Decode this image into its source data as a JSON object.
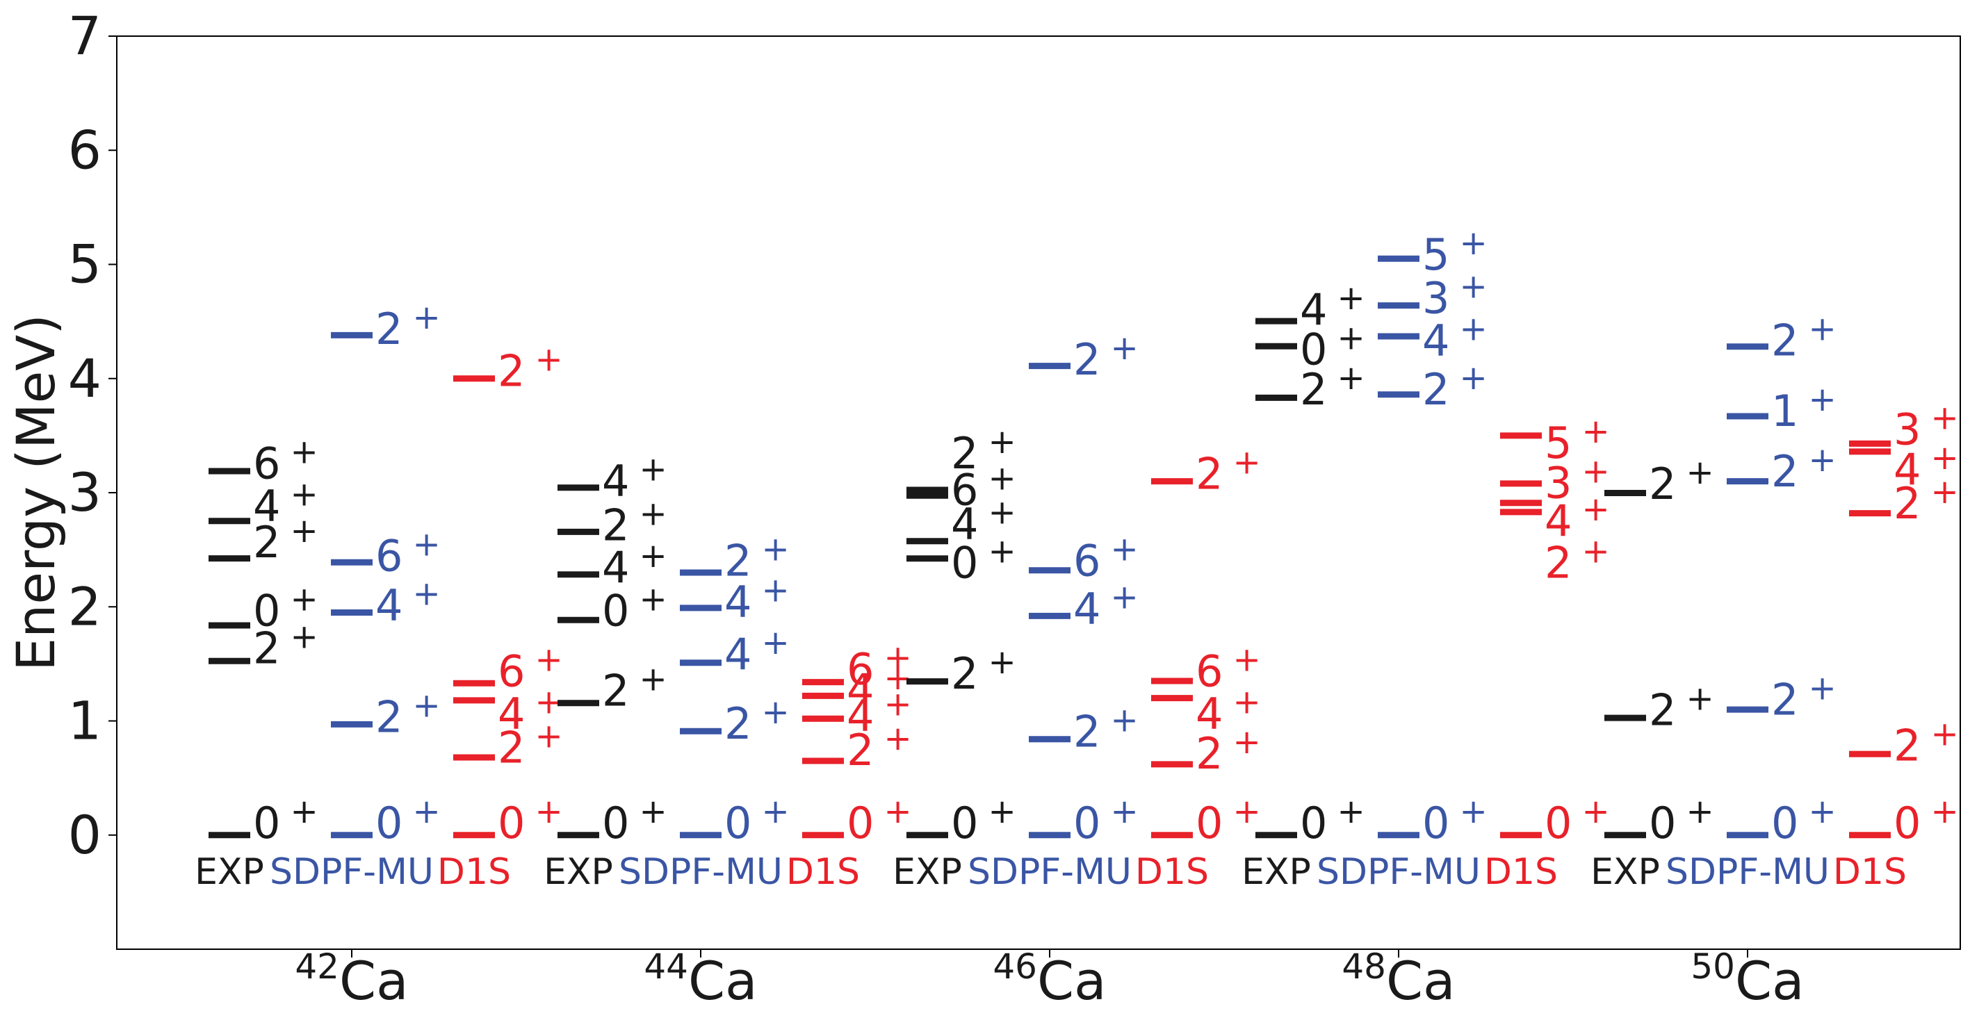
{
  "colors": {
    "EXP": "#1a1a1a",
    "SDPF-MU": "#3a55a4",
    "D1S": "#e8212a",
    "axis": "#000000"
  },
  "chart_data": {
    "type": "level-scheme",
    "ylabel": "Energy (MeV)",
    "ylim": [
      -1.0,
      7.0
    ],
    "yticks": [
      "0",
      "1",
      "2",
      "3",
      "4",
      "5",
      "6",
      "7"
    ],
    "methods": [
      "EXP",
      "SDPF-MU",
      "D1S"
    ],
    "nuclei": [
      {
        "mass": "42",
        "element": "Ca",
        "columns": [
          {
            "method": "EXP",
            "levels": [
              {
                "e": 0.0,
                "label": "0",
                "label_e": 0.12
              },
              {
                "e": 1.525,
                "label": "2",
                "label_e": 1.65
              },
              {
                "e": 1.837,
                "label": "0",
                "label_e": 1.98
              },
              {
                "e": 2.424,
                "label": "2",
                "label_e": 2.58
              },
              {
                "e": 2.752,
                "label": "4",
                "label_e": 2.9
              },
              {
                "e": 3.189,
                "label": "6",
                "label_e": 3.27
              }
            ]
          },
          {
            "method": "SDPF-MU",
            "levels": [
              {
                "e": 0.0,
                "label": "0",
                "label_e": 0.12
              },
              {
                "e": 0.97,
                "label": "2",
                "label_e": 1.05
              },
              {
                "e": 1.95,
                "label": "4",
                "label_e": 2.03
              },
              {
                "e": 2.39,
                "label": "6",
                "label_e": 2.46
              },
              {
                "e": 4.38,
                "label": "2",
                "label_e": 4.45
              }
            ]
          },
          {
            "method": "D1S",
            "levels": [
              {
                "e": 0.0,
                "label": "0",
                "label_e": 0.12
              },
              {
                "e": 0.68,
                "label": "2",
                "label_e": 0.78
              },
              {
                "e": 1.18,
                "label": "4",
                "label_e": 1.08
              },
              {
                "e": 1.33,
                "label": "6",
                "label_e": 1.45
              },
              {
                "e": 4.0,
                "label": "2",
                "label_e": 4.08
              }
            ]
          }
        ]
      },
      {
        "mass": "44",
        "element": "Ca",
        "columns": [
          {
            "method": "EXP",
            "levels": [
              {
                "e": 0.0,
                "label": "0",
                "label_e": 0.12
              },
              {
                "e": 1.157,
                "label": "2",
                "label_e": 1.28
              },
              {
                "e": 1.884,
                "label": "0",
                "label_e": 1.98
              },
              {
                "e": 2.283,
                "label": "4",
                "label_e": 2.36
              },
              {
                "e": 2.657,
                "label": "2",
                "label_e": 2.73
              },
              {
                "e": 3.044,
                "label": "4",
                "label_e": 3.12
              }
            ]
          },
          {
            "method": "SDPF-MU",
            "levels": [
              {
                "e": 0.0,
                "label": "0",
                "label_e": 0.12
              },
              {
                "e": 0.91,
                "label": "2",
                "label_e": 0.99
              },
              {
                "e": 1.51,
                "label": "4",
                "label_e": 1.6
              },
              {
                "e": 1.99,
                "label": "4",
                "label_e": 2.06
              },
              {
                "e": 2.3,
                "label": "2",
                "label_e": 2.42
              }
            ]
          },
          {
            "method": "D1S",
            "levels": [
              {
                "e": 0.0,
                "label": "0",
                "label_e": 0.12
              },
              {
                "e": 0.65,
                "label": "2",
                "label_e": 0.76
              },
              {
                "e": 1.02,
                "label": "4",
                "label_e": 1.06
              },
              {
                "e": 1.22,
                "label": "4",
                "label_e": 1.29
              },
              {
                "e": 1.34,
                "label": "6",
                "label_e": 1.47
              }
            ]
          }
        ]
      },
      {
        "mass": "46",
        "element": "Ca",
        "columns": [
          {
            "method": "EXP",
            "levels": [
              {
                "e": 0.0,
                "label": "0",
                "label_e": 0.12
              },
              {
                "e": 1.346,
                "label": "2",
                "label_e": 1.43
              },
              {
                "e": 2.423,
                "label": "0",
                "label_e": 2.4
              },
              {
                "e": 2.575,
                "label": "4",
                "label_e": 2.74
              },
              {
                "e": 2.974,
                "label": "6",
                "label_e": 3.04
              },
              {
                "e": 3.024,
                "label": "2",
                "label_e": 3.36
              }
            ]
          },
          {
            "method": "SDPF-MU",
            "levels": [
              {
                "e": 0.0,
                "label": "0",
                "label_e": 0.12
              },
              {
                "e": 0.84,
                "label": "2",
                "label_e": 0.92
              },
              {
                "e": 1.92,
                "label": "4",
                "label_e": 2.0
              },
              {
                "e": 2.32,
                "label": "6",
                "label_e": 2.42
              },
              {
                "e": 4.11,
                "label": "2",
                "label_e": 4.18
              }
            ]
          },
          {
            "method": "D1S",
            "levels": [
              {
                "e": 0.0,
                "label": "0",
                "label_e": 0.12
              },
              {
                "e": 0.62,
                "label": "2",
                "label_e": 0.73
              },
              {
                "e": 1.2,
                "label": "4",
                "label_e": 1.08
              },
              {
                "e": 1.35,
                "label": "6",
                "label_e": 1.45
              },
              {
                "e": 3.1,
                "label": "2",
                "label_e": 3.18
              }
            ]
          }
        ]
      },
      {
        "mass": "48",
        "element": "Ca",
        "columns": [
          {
            "method": "EXP",
            "levels": [
              {
                "e": 0.0,
                "label": "0",
                "label_e": 0.12
              },
              {
                "e": 3.832,
                "label": "2",
                "label_e": 3.92
              },
              {
                "e": 4.283,
                "label": "0",
                "label_e": 4.27
              },
              {
                "e": 4.503,
                "label": "4",
                "label_e": 4.62
              }
            ]
          },
          {
            "method": "SDPF-MU",
            "levels": [
              {
                "e": 0.0,
                "label": "0",
                "label_e": 0.12
              },
              {
                "e": 3.86,
                "label": "2",
                "label_e": 3.92
              },
              {
                "e": 4.37,
                "label": "4",
                "label_e": 4.35
              },
              {
                "e": 4.64,
                "label": "3",
                "label_e": 4.72
              },
              {
                "e": 5.05,
                "label": "5",
                "label_e": 5.1
              }
            ]
          },
          {
            "method": "D1S",
            "levels": [
              {
                "e": 0.0,
                "label": "0",
                "label_e": 0.12
              },
              {
                "e": 2.83,
                "label": "2",
                "label_e": 2.4
              },
              {
                "e": 2.91,
                "label": "4",
                "label_e": 2.77
              },
              {
                "e": 3.08,
                "label": "3",
                "label_e": 3.1
              },
              {
                "e": 3.5,
                "label": "5",
                "label_e": 3.45
              }
            ]
          }
        ]
      },
      {
        "mass": "50",
        "element": "Ca",
        "columns": [
          {
            "method": "EXP",
            "levels": [
              {
                "e": 0.0,
                "label": "0",
                "label_e": 0.12
              },
              {
                "e": 1.027,
                "label": "2",
                "label_e": 1.11
              },
              {
                "e": 2.997,
                "label": "2",
                "label_e": 3.09
              }
            ]
          },
          {
            "method": "SDPF-MU",
            "levels": [
              {
                "e": 0.0,
                "label": "0",
                "label_e": 0.12
              },
              {
                "e": 1.1,
                "label": "2",
                "label_e": 1.2
              },
              {
                "e": 3.1,
                "label": "2",
                "label_e": 3.2
              },
              {
                "e": 3.67,
                "label": "1",
                "label_e": 3.73
              },
              {
                "e": 4.28,
                "label": "2",
                "label_e": 4.35
              }
            ]
          },
          {
            "method": "D1S",
            "levels": [
              {
                "e": 0.0,
                "label": "0",
                "label_e": 0.12
              },
              {
                "e": 0.71,
                "label": "2",
                "label_e": 0.8
              },
              {
                "e": 2.82,
                "label": "2",
                "label_e": 2.92
              },
              {
                "e": 3.36,
                "label": "4",
                "label_e": 3.22
              },
              {
                "e": 3.43,
                "label": "3",
                "label_e": 3.57
              }
            ]
          }
        ]
      }
    ]
  }
}
